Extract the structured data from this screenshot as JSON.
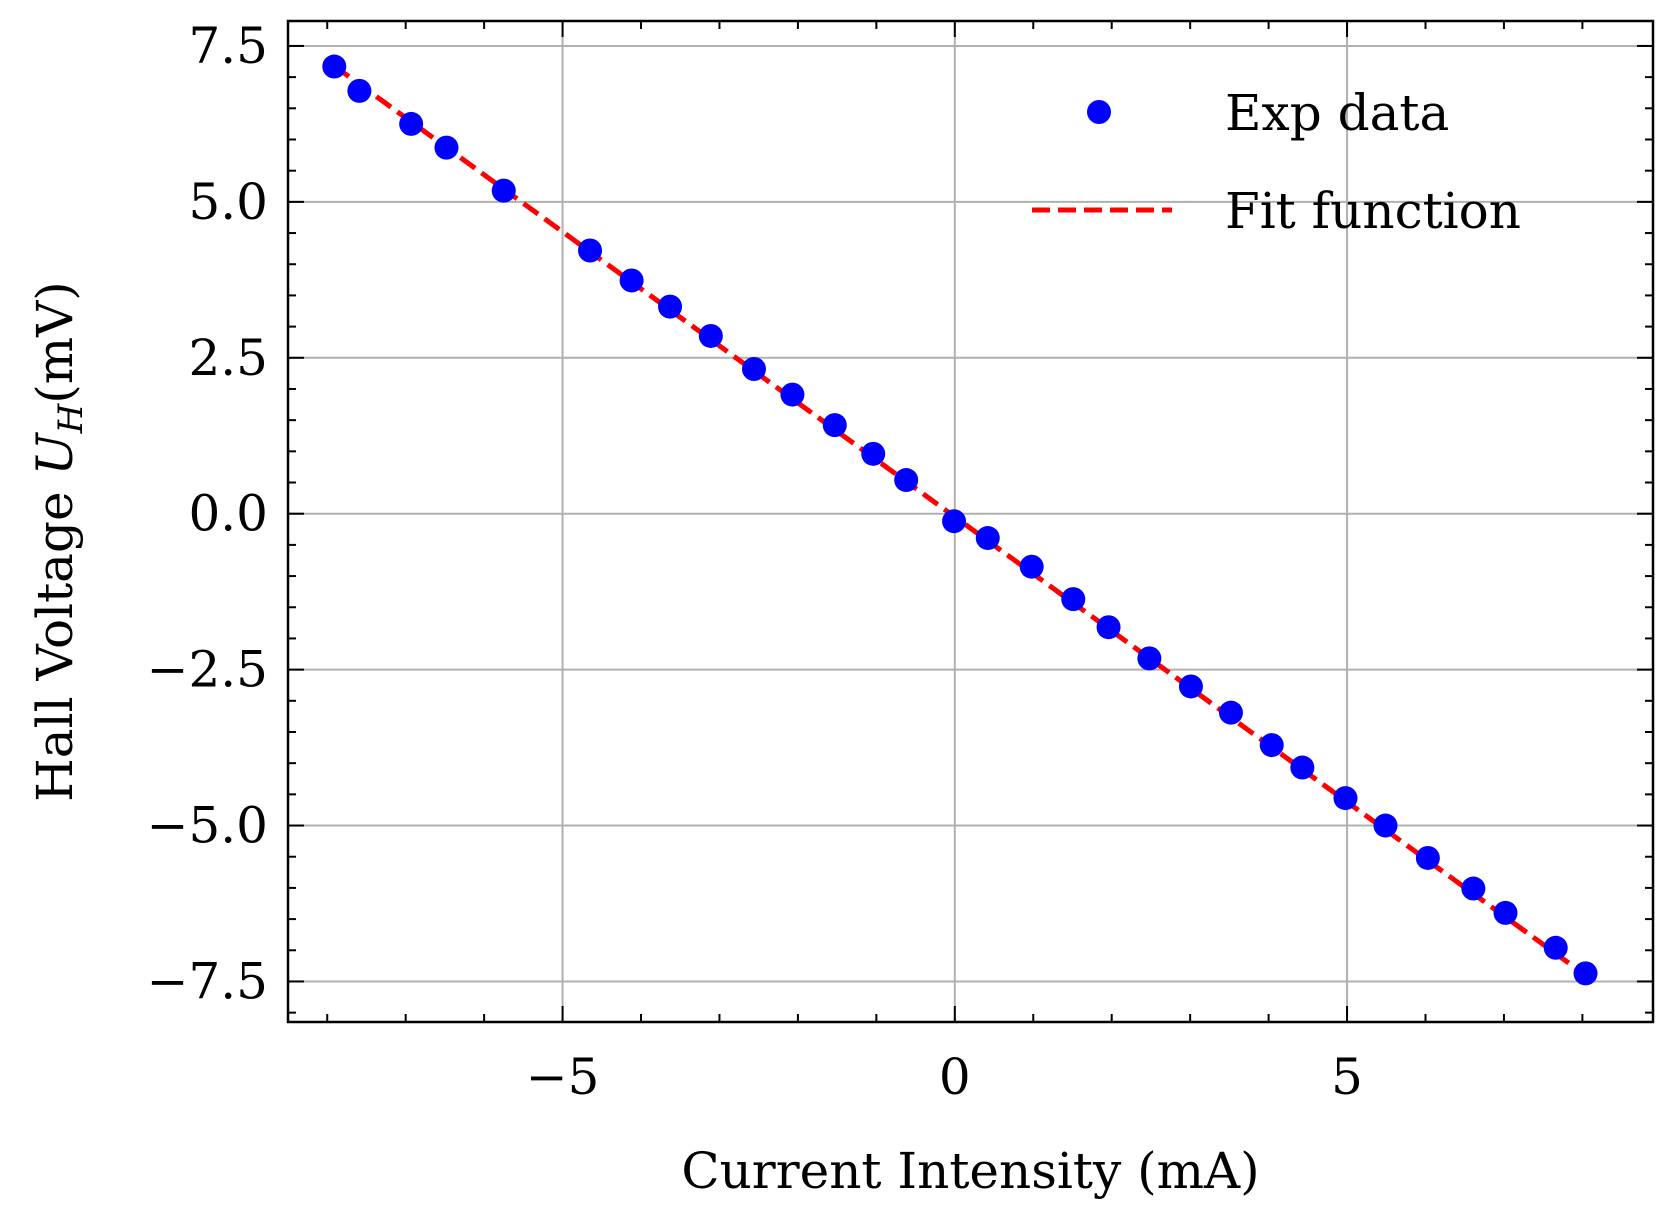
{
  "chart_data": {
    "type": "scatter",
    "xlabel": "Current Intensity (mA)",
    "ylabel_prefix": "Hall Voltage ",
    "ylabel_symbol": "U",
    "ylabel_subscript": "H",
    "ylabel_unit": "(mV)",
    "xlim": [
      -8.5,
      8.9
    ],
    "ylim": [
      -8.15,
      7.9
    ],
    "xticks": [
      -5,
      0,
      5
    ],
    "xtick_labels": [
      "−5",
      "0",
      "5"
    ],
    "yticks": [
      -7.5,
      -5.0,
      -2.5,
      0.0,
      2.5,
      5.0,
      7.5
    ],
    "ytick_labels": [
      "−7.5",
      "−5.0",
      "−2.5",
      "0.0",
      "2.5",
      "5.0",
      "7.5"
    ],
    "grid": true,
    "legend_position": "top-right",
    "colors": {
      "points": "#0000ff",
      "fit": "#ff0000",
      "grid": "#b0b0b0"
    },
    "series": [
      {
        "name": "Exp data",
        "kind": "points",
        "x": [
          -7.91,
          -7.59,
          -6.93,
          -6.48,
          -5.75,
          -4.65,
          -4.12,
          -3.63,
          -3.11,
          -2.56,
          -2.07,
          -1.53,
          -1.04,
          -0.62,
          -0.01,
          0.42,
          0.98,
          1.51,
          1.96,
          2.48,
          3.01,
          3.52,
          4.04,
          4.43,
          4.98,
          5.49,
          6.03,
          6.61,
          7.02,
          7.66,
          8.04
        ],
        "y": [
          7.17,
          6.78,
          6.25,
          5.87,
          5.18,
          4.22,
          3.74,
          3.32,
          2.85,
          2.32,
          1.91,
          1.42,
          0.96,
          0.54,
          -0.12,
          -0.39,
          -0.85,
          -1.37,
          -1.82,
          -2.32,
          -2.77,
          -3.19,
          -3.71,
          -4.07,
          -4.56,
          -5.0,
          -5.52,
          -6.01,
          -6.4,
          -6.96,
          -7.37
        ]
      },
      {
        "name": "Fit function",
        "kind": "dashed-line",
        "x": [
          -7.91,
          8.04
        ],
        "y": [
          7.18,
          -7.4
        ]
      }
    ]
  }
}
